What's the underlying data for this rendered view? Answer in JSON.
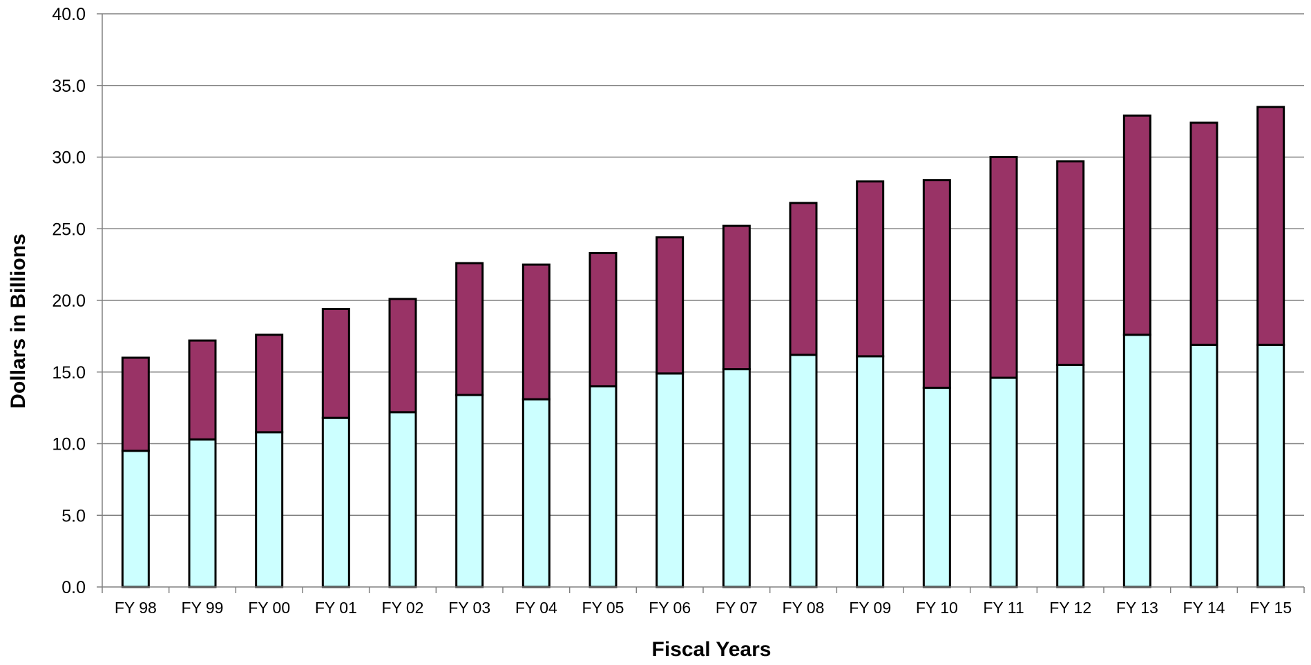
{
  "chart_data": {
    "type": "bar",
    "stacked": true,
    "title": "",
    "xlabel": "Fiscal Years",
    "ylabel": "Dollars in Billions",
    "ylim": [
      0,
      40
    ],
    "yticks": [
      "0.0",
      "5.0",
      "10.0",
      "15.0",
      "20.0",
      "25.0",
      "30.0",
      "35.0",
      "40.0"
    ],
    "grid": true,
    "legend": "none",
    "categories": [
      "FY 98",
      "FY 99",
      "FY 00",
      "FY 01",
      "FY 02",
      "FY 03",
      "FY 04",
      "FY 05",
      "FY 06",
      "FY 07",
      "FY 08",
      "FY 09",
      "FY 10",
      "FY 11",
      "FY 12",
      "FY 13",
      "FY 14",
      "FY 15"
    ],
    "series": [
      {
        "color": "#CCFFFF",
        "values": [
          9.5,
          10.3,
          10.8,
          11.8,
          12.2,
          13.4,
          13.1,
          14.0,
          14.9,
          15.2,
          16.2,
          16.1,
          13.9,
          14.6,
          15.5,
          17.6,
          16.9,
          16.9
        ]
      },
      {
        "color": "#993366",
        "values": [
          6.5,
          6.9,
          6.8,
          7.6,
          7.9,
          9.2,
          9.4,
          9.3,
          9.5,
          10.0,
          10.6,
          12.2,
          14.5,
          15.4,
          14.2,
          15.3,
          15.5,
          16.6
        ]
      }
    ]
  }
}
